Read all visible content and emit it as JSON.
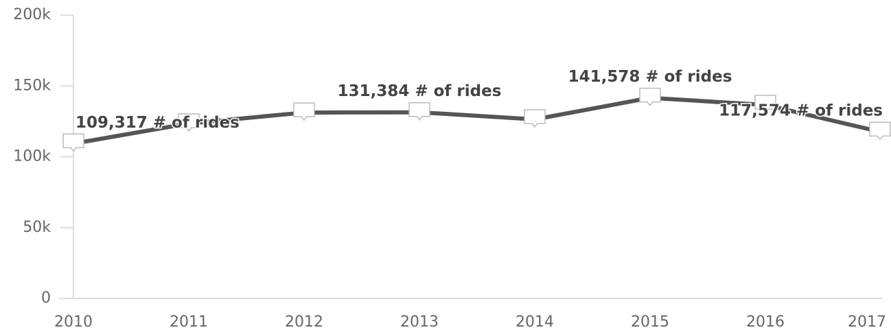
{
  "chart_data": {
    "type": "line",
    "categories": [
      "2010",
      "2011",
      "2012",
      "2013",
      "2014",
      "2015",
      "2016",
      "2017"
    ],
    "series": [
      {
        "name": "# of rides",
        "color": "#555555",
        "values": [
          109317,
          123500,
          131200,
          131384,
          126400,
          141578,
          136600,
          117574
        ],
        "value_labels": [
          "109,317 # of rides",
          null,
          null,
          "131,384 # of rides",
          null,
          "141,578 # of rides",
          null,
          "117,574 # of rides"
        ]
      }
    ],
    "ylim": [
      0,
      200000
    ],
    "yticks": [
      0,
      {
        "value": 50000,
        "label": "50k"
      },
      {
        "value": 100000,
        "label": "100k"
      },
      {
        "value": 150000,
        "label": "150k"
      },
      {
        "value": 200000,
        "label": "200k"
      }
    ]
  }
}
